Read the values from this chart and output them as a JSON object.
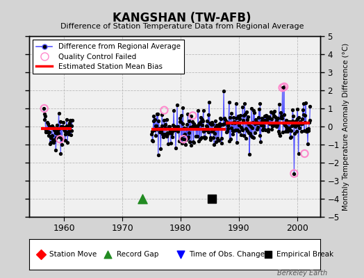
{
  "title": "KANGSHAN (TW-AFB)",
  "subtitle": "Difference of Station Temperature Data from Regional Average",
  "ylabel": "Monthly Temperature Anomaly Difference (°C)",
  "xlim": [
    1954,
    2004
  ],
  "ylim": [
    -5,
    5
  ],
  "yticks": [
    -5,
    -4,
    -3,
    -2,
    -1,
    0,
    1,
    2,
    3,
    4,
    5
  ],
  "xticks": [
    1960,
    1970,
    1980,
    1990,
    2000
  ],
  "bg_color": "#d4d4d4",
  "plot_bg_color": "#f0f0f0",
  "grid_color": "#bbbbbb",
  "line_color": "#5555ff",
  "dot_color": "#000000",
  "bias_color": "#ff0000",
  "qc_color": "#ff88cc",
  "watermark": "Berkeley Earth",
  "seg1_bias": -0.1,
  "seg2_bias": -0.15,
  "seg3_bias": 0.18,
  "record_gap_x": 1973.5,
  "empirical_break_x": 1985.4,
  "seg1_x_start": 1956.0,
  "seg1_x_end": 1961.3,
  "seg2_x_start": 1975.0,
  "seg2_x_end": 1987.8,
  "seg3_x_start": 1987.8,
  "seg3_x_end": 2002.2
}
